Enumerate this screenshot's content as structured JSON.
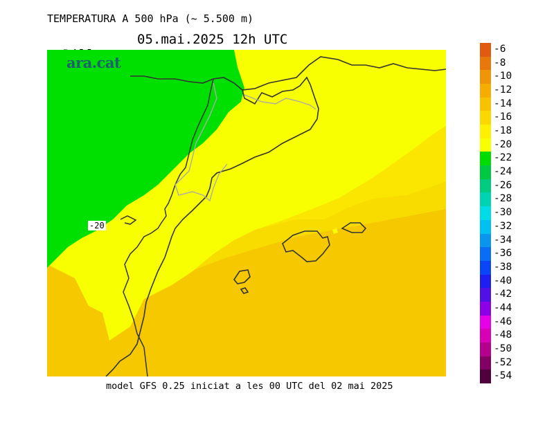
{
  "header": {
    "title": "TEMPERATURA A 500 hPa (~ 5.500 m)",
    "day": "Dilluns",
    "datetime": "05.mai.2025 12h UTC"
  },
  "logo": "ara.cat",
  "contour_label": "-20",
  "footer": "model GFS 0.25 iniciat a les 00 UTC del 02 mai 2025",
  "legend": {
    "labels": [
      "-6",
      "-8",
      "-10",
      "-12",
      "-14",
      "-16",
      "-18",
      "-20",
      "-22",
      "-24",
      "-26",
      "-28",
      "-30",
      "-32",
      "-34",
      "-36",
      "-38",
      "-40",
      "-42",
      "-44",
      "-46",
      "-48",
      "-50",
      "-52",
      "-54"
    ],
    "colors": [
      "#e05a10",
      "#e8780a",
      "#f09508",
      "#f5ae00",
      "#f7c300",
      "#fad800",
      "#fdf000",
      "#f7ff00",
      "#00dc00",
      "#00c840",
      "#00cc80",
      "#00d2b4",
      "#00dce6",
      "#00c0f0",
      "#0a96ee",
      "#0a6ef5",
      "#0a46f5",
      "#1e1ef0",
      "#5010e6",
      "#8c00e6",
      "#e600e6",
      "#d700b4",
      "#b4008c",
      "#820064",
      "#50003c"
    ]
  },
  "map_colors": {
    "green": "#00e000",
    "yellow": "#f8ff00",
    "yellow_orange": "#fae600",
    "light_orange": "#f8dc00",
    "orange": "#f6c800",
    "coast": "#333333",
    "border": "#aaaaaa"
  }
}
